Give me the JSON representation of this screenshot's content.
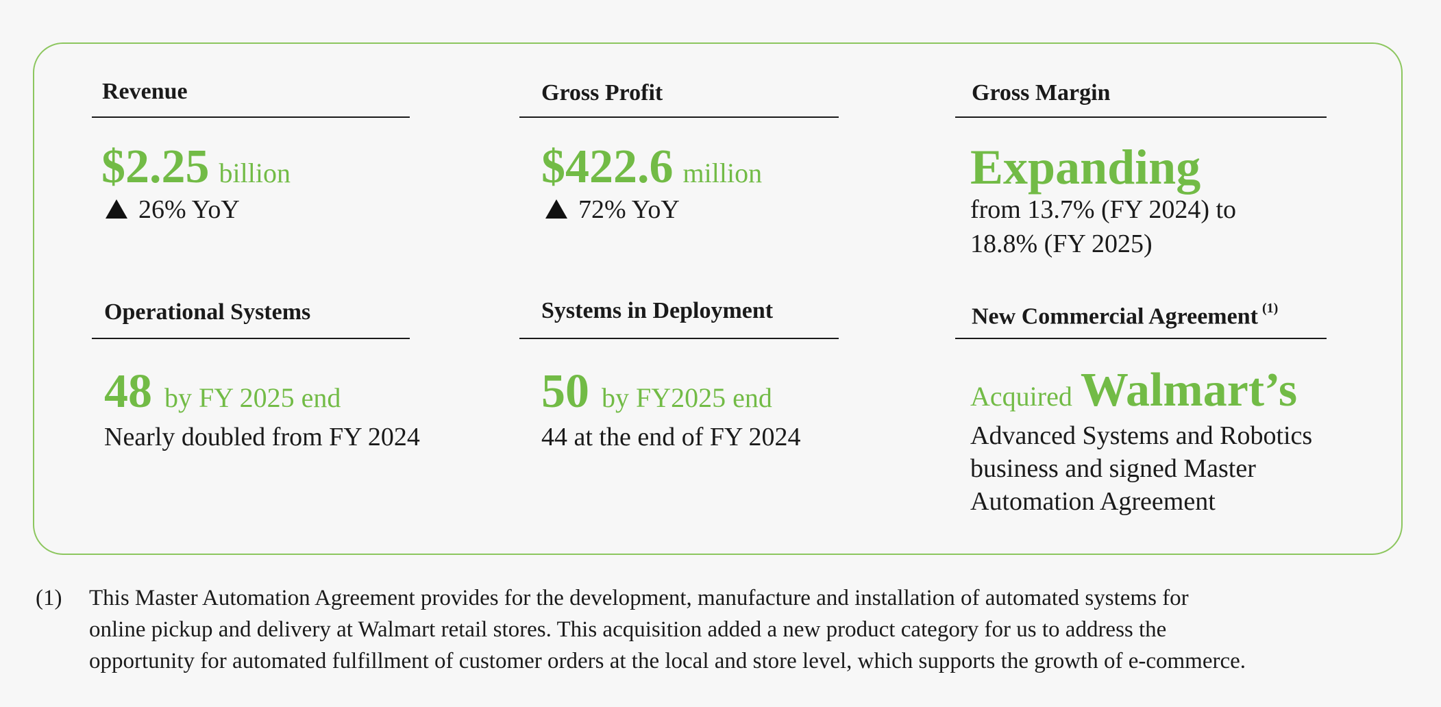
{
  "metrics": {
    "revenue": {
      "label": "Revenue",
      "value": "$2.25",
      "unit": "billion",
      "change": "26% YoY"
    },
    "gross_profit": {
      "label": "Gross Profit",
      "value": "$422.6",
      "unit": "million",
      "change": "72% YoY"
    },
    "gross_margin": {
      "label": "Gross Margin",
      "value": "Expanding",
      "detail_line1": "from 13.7% (FY 2024) to",
      "detail_line2": "18.8% (FY 2025)"
    },
    "operational_systems": {
      "label": "Operational Systems",
      "value": "48",
      "unit": "by FY 2025 end",
      "detail": "Nearly doubled from FY 2024"
    },
    "systems_in_deployment": {
      "label": "Systems in Deployment",
      "value": "50",
      "unit": "by FY2025 end",
      "detail": "44 at the end of FY 2024"
    },
    "new_commercial_agreement": {
      "label": "New Commercial Agreement",
      "footnote_ref": "(1)",
      "prefix": "Acquired",
      "value": "Walmart’s",
      "detail_line1": "Advanced Systems and Robotics",
      "detail_line2": "business and signed Master",
      "detail_line3": "Automation Agreement"
    }
  },
  "footnote": {
    "marker": "(1)",
    "line1": "This Master Automation Agreement provides for the development, manufacture and installation of automated systems for",
    "line2": "online pickup and delivery at Walmart retail stores. This acquisition added a new product category for us to address the",
    "line3": "opportunity for automated fulfillment of customer orders at the local and store level, which supports the growth of e-commerce."
  },
  "colors": {
    "accent": "#72bb46",
    "border": "#8cc65e",
    "text": "#1a1a1a",
    "background": "#f7f7f7"
  },
  "icons": {
    "increase": "up-triangle-icon"
  }
}
